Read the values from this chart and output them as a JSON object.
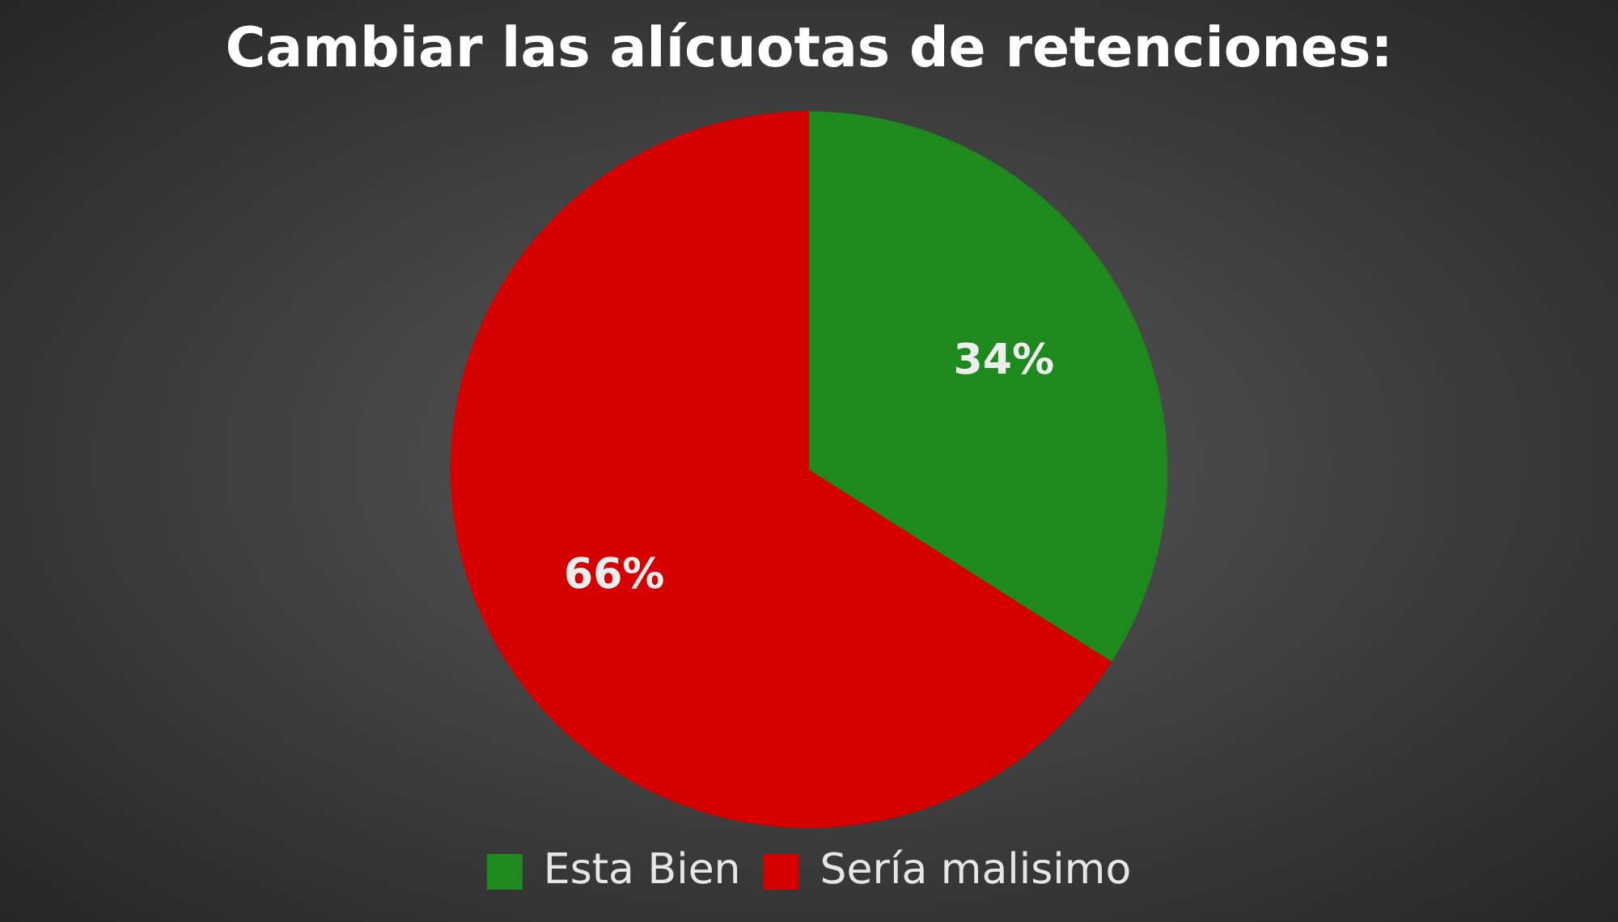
{
  "chart_data": {
    "type": "pie",
    "title": "Cambiar las alícuotas de retenciones:",
    "categories": [
      "Esta Bien",
      "Sería malisimo"
    ],
    "values": [
      34,
      66
    ],
    "colors": [
      "#1e8a1e",
      "#d40000"
    ],
    "value_labels": [
      "34%",
      "66%"
    ],
    "legend": "bottom"
  }
}
